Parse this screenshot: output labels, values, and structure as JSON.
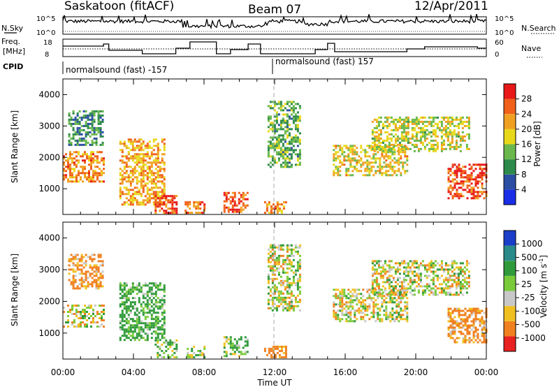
{
  "header": {
    "station": "Saskatoon (fitACF)",
    "beam": "Beam 07",
    "date": "12/Apr/2011"
  },
  "noise_panel": {
    "left_label": "N.Sky",
    "left_ticks": [
      "10^5",
      "10^0"
    ],
    "right_label": "N.Search",
    "right_ticks": [
      "10^5",
      "10^0"
    ]
  },
  "freq_panel": {
    "left_label_1": "Freq.",
    "left_label_2": "[MHz]",
    "left_ticks": [
      "18",
      "8"
    ],
    "right_label": "Nave",
    "right_ticks": [
      "60",
      "0"
    ],
    "cpid_label": "CPID",
    "cpid_left": "normalsound (fast) -157",
    "cpid_right": "normalsound (fast) 157"
  },
  "x_axis": {
    "label": "Time UT",
    "ticks": [
      "00:00",
      "04:00",
      "08:00",
      "12:00",
      "16:00",
      "20:00",
      "00:00"
    ]
  },
  "power_panel": {
    "ylabel": "Slant Range [km]",
    "yticks": [
      "1000",
      "2000",
      "3000",
      "4000"
    ],
    "colorbar_label": "Power [dB]",
    "colorbar_ticks": [
      "4",
      "8",
      "12",
      "16",
      "20",
      "24",
      "28"
    ],
    "colors": [
      "#1a2ee8",
      "#2b4ea3",
      "#2e8a4a",
      "#6ab84d",
      "#e8d81a",
      "#f0a020",
      "#f06018",
      "#e81818"
    ]
  },
  "velocity_panel": {
    "ylabel": "Slant Range [km]",
    "yticks": [
      "1000",
      "2000",
      "3000",
      "4000"
    ],
    "colorbar_label": "Velocity [m s",
    "colorbar_sup": "-1",
    "colorbar_ticks": [
      "1000",
      "500",
      "100",
      "25",
      "-25",
      "-100",
      "-500",
      "-1000"
    ],
    "colors": [
      "#1a3ec8",
      "#2a8a8a",
      "#2f9a3a",
      "#7acb3a",
      "#c8c8c8",
      "#f0c020",
      "#f08020",
      "#e82020"
    ]
  },
  "chart_data": {
    "type": "heatmap",
    "title": "Saskatoon (fitACF)  Beam 07  12/Apr/2011",
    "xlabel": "Time UT",
    "ylabel": "Slant Range [km]",
    "x_range_hours": [
      0,
      24
    ],
    "y_range_km": [
      180,
      4500
    ],
    "panels": [
      {
        "name": "Power",
        "unit": "dB",
        "colorbar_range": [
          0,
          30
        ],
        "regions": [
          {
            "t": [
              0.0,
              2.3
            ],
            "r": [
              1200,
              2200
            ],
            "value": 22
          },
          {
            "t": [
              0.3,
              2.3
            ],
            "r": [
              2400,
              3500
            ],
            "value": 10
          },
          {
            "t": [
              3.2,
              5.8
            ],
            "r": [
              500,
              2600
            ],
            "value": 20
          },
          {
            "t": [
              5.2,
              6.5
            ],
            "r": [
              250,
              800
            ],
            "value": 26
          },
          {
            "t": [
              6.9,
              8.0
            ],
            "r": [
              250,
              600
            ],
            "value": 24
          },
          {
            "t": [
              9.1,
              10.5
            ],
            "r": [
              250,
              900
            ],
            "value": 26
          },
          {
            "t": [
              11.4,
              12.6
            ],
            "r": [
              250,
              600
            ],
            "value": 22
          },
          {
            "t": [
              11.6,
              13.5
            ],
            "r": [
              1700,
              3800
            ],
            "value": 12
          },
          {
            "t": [
              15.3,
              19.5
            ],
            "r": [
              1400,
              2400
            ],
            "value": 18
          },
          {
            "t": [
              17.5,
              23.0
            ],
            "r": [
              2200,
              3300
            ],
            "value": 16
          },
          {
            "t": [
              21.8,
              24.0
            ],
            "r": [
              700,
              1800
            ],
            "value": 26
          }
        ]
      },
      {
        "name": "Velocity",
        "unit": "m s-1",
        "colorbar_range": [
          -1000,
          1000
        ],
        "regions": [
          {
            "t": [
              0.0,
              2.3
            ],
            "r": [
              1200,
              1900
            ],
            "value": 0
          },
          {
            "t": [
              0.3,
              2.3
            ],
            "r": [
              2400,
              3500
            ],
            "value": -150
          },
          {
            "t": [
              3.2,
              5.8
            ],
            "r": [
              800,
              2600
            ],
            "value": 150
          },
          {
            "t": [
              5.2,
              6.5
            ],
            "r": [
              250,
              800
            ],
            "value": 100
          },
          {
            "t": [
              6.9,
              8.0
            ],
            "r": [
              250,
              600
            ],
            "value": 50
          },
          {
            "t": [
              9.1,
              10.5
            ],
            "r": [
              250,
              900
            ],
            "value": 80
          },
          {
            "t": [
              11.4,
              12.6
            ],
            "r": [
              250,
              600
            ],
            "value": -200
          },
          {
            "t": [
              11.6,
              13.5
            ],
            "r": [
              1700,
              3800
            ],
            "value": 0
          },
          {
            "t": [
              15.3,
              19.5
            ],
            "r": [
              1400,
              2400
            ],
            "value": 0
          },
          {
            "t": [
              17.5,
              23.0
            ],
            "r": [
              2200,
              3300
            ],
            "value": 0
          },
          {
            "t": [
              21.8,
              24.0
            ],
            "r": [
              700,
              1800
            ],
            "value": -150
          }
        ]
      }
    ]
  }
}
